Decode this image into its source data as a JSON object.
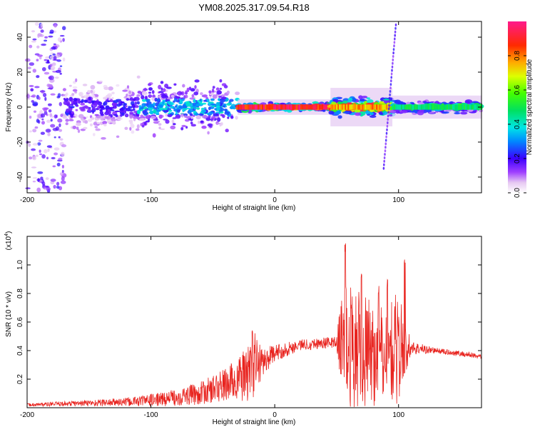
{
  "title": "YM08.2025.317.09.54.R18",
  "chart_data": [
    {
      "type": "heatmap",
      "name": "spectrogram",
      "xlabel": "Height of straight line (km)",
      "ylabel": "Frequency (Hz)",
      "xlim": [
        -200,
        167
      ],
      "ylim": [
        -49,
        49
      ],
      "xticks": [
        -200,
        -100,
        0,
        100
      ],
      "yticks": [
        -40,
        -20,
        0,
        20,
        40
      ],
      "colorbar": {
        "label": "Normalized spectral amplitude",
        "range": [
          0,
          1
        ],
        "ticks": [
          0.0,
          0.2,
          0.4,
          0.6,
          0.8
        ]
      },
      "description_segments": [
        {
          "x_start": -200,
          "x_end": -170,
          "amplitude": 0.12,
          "spread_hz": 48
        },
        {
          "x_start": -170,
          "x_end": -110,
          "amplitude": 0.2,
          "spread_hz": 10
        },
        {
          "x_start": -110,
          "x_end": -30,
          "amplitude": 0.35,
          "spread_hz": 9
        },
        {
          "x_start": -30,
          "x_end": 45,
          "amplitude": 0.95,
          "spread_hz": 2
        },
        {
          "x_start": 45,
          "x_end": 95,
          "amplitude": 0.8,
          "spread_hz": 5
        },
        {
          "x_start": 95,
          "x_end": 167,
          "amplitude": 0.5,
          "spread_hz": 3
        }
      ]
    },
    {
      "type": "line",
      "name": "snr",
      "xlabel": "Height of straight line (km)",
      "ylabel": "SNR (10 * v/v)",
      "ymult_label": "(x10",
      "ymult_exp": "4",
      "ymult_close": ")",
      "xlim": [
        -200,
        167
      ],
      "ylim": [
        0,
        1.2
      ],
      "xticks": [
        -200,
        -100,
        0,
        100
      ],
      "yticks": [
        0.2,
        0.4,
        0.6,
        0.8,
        1.0
      ],
      "series": [
        {
          "name": "SNR",
          "color": "#e8231e",
          "envelope": [
            {
              "x": -200,
              "base": 0.02,
              "amp": 0.01
            },
            {
              "x": -160,
              "base": 0.03,
              "amp": 0.02
            },
            {
              "x": -120,
              "base": 0.04,
              "amp": 0.03
            },
            {
              "x": -90,
              "base": 0.06,
              "amp": 0.05
            },
            {
              "x": -60,
              "base": 0.1,
              "amp": 0.08
            },
            {
              "x": -40,
              "base": 0.16,
              "amp": 0.12
            },
            {
              "x": -25,
              "base": 0.22,
              "amp": 0.18
            },
            {
              "x": -17,
              "base": 0.3,
              "amp": 0.26
            },
            {
              "x": -10,
              "base": 0.32,
              "amp": 0.1
            },
            {
              "x": 0,
              "base": 0.38,
              "amp": 0.06
            },
            {
              "x": 20,
              "base": 0.44,
              "amp": 0.04
            },
            {
              "x": 50,
              "base": 0.46,
              "amp": 0.04
            },
            {
              "x": 55,
              "base": 0.45,
              "amp": 0.45
            },
            {
              "x": 70,
              "base": 0.4,
              "amp": 0.4
            },
            {
              "x": 85,
              "base": 0.35,
              "amp": 0.35
            },
            {
              "x": 100,
              "base": 0.42,
              "amp": 0.4
            },
            {
              "x": 110,
              "base": 0.42,
              "amp": 0.05
            },
            {
              "x": 130,
              "base": 0.4,
              "amp": 0.02
            },
            {
              "x": 167,
              "base": 0.36,
              "amp": 0.02
            }
          ],
          "peaks": [
            {
              "x": -18,
              "y": 0.56
            },
            {
              "x": 57,
              "y": 1.17
            },
            {
              "x": 70,
              "y": 0.94
            },
            {
              "x": 84,
              "y": 0.86
            },
            {
              "x": 91,
              "y": 0.9
            },
            {
              "x": 105,
              "y": 1.1
            }
          ]
        }
      ]
    }
  ]
}
